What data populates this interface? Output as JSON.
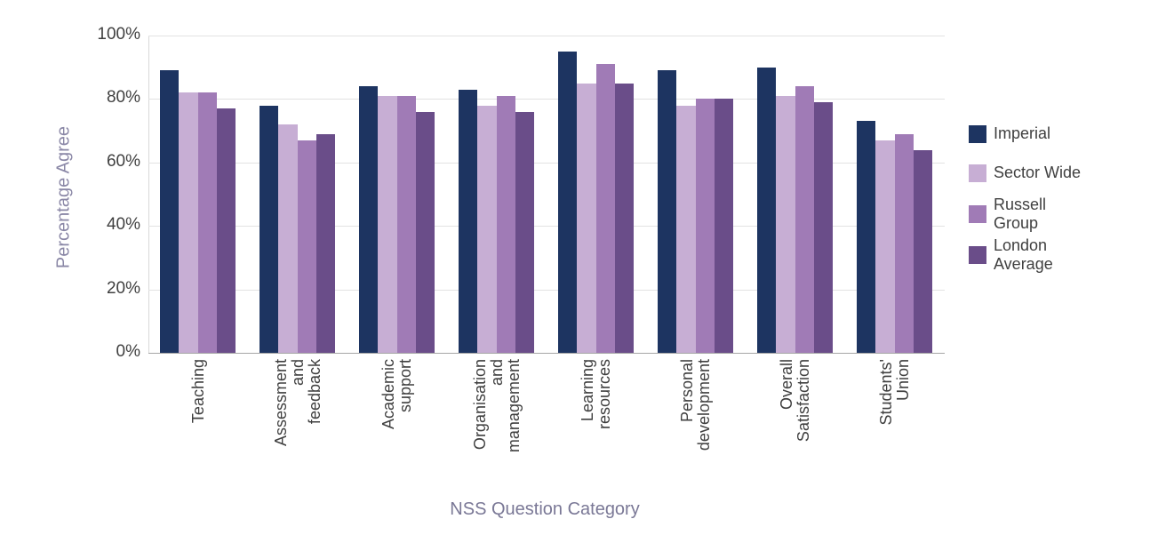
{
  "chart_data": {
    "type": "bar",
    "title": "",
    "xlabel": "NSS Question Category",
    "ylabel": "Percentage Agree",
    "ylim": [
      0,
      100
    ],
    "yticks": [
      "0%",
      "20%",
      "40%",
      "60%",
      "80%",
      "100%"
    ],
    "grid": true,
    "legend_position": "right",
    "categories": [
      "Teaching",
      "Assessment and feedback",
      "Academic support",
      "Organisation and management",
      "Learning resources",
      "Personal development",
      "Overall Satisfaction",
      "Students' Union"
    ],
    "category_lines": [
      [
        "Teaching"
      ],
      [
        "Assessment",
        "and",
        "feedback"
      ],
      [
        "Academic",
        "support"
      ],
      [
        "Organisation",
        "and",
        "management"
      ],
      [
        "Learning",
        "resources"
      ],
      [
        "Personal",
        "development"
      ],
      [
        "Overall",
        "Satisfaction"
      ],
      [
        "Students'",
        "Union"
      ]
    ],
    "series": [
      {
        "name": "Imperial",
        "legend_lines": [
          "Imperial"
        ],
        "color": "#1d3461",
        "values": [
          89,
          78,
          84,
          83,
          95,
          89,
          90,
          73
        ]
      },
      {
        "name": "Sector Wide",
        "legend_lines": [
          "Sector Wide"
        ],
        "color": "#c7aed4",
        "values": [
          82,
          72,
          81,
          78,
          85,
          78,
          81,
          67
        ]
      },
      {
        "name": "Russell Group",
        "legend_lines": [
          "Russell",
          "Group"
        ],
        "color": "#a07bb6",
        "values": [
          82,
          67,
          81,
          81,
          91,
          80,
          84,
          69
        ]
      },
      {
        "name": "London Average",
        "legend_lines": [
          "London",
          "Average"
        ],
        "color": "#6a4d89",
        "values": [
          77,
          69,
          76,
          76,
          85,
          80,
          79,
          64
        ]
      }
    ]
  }
}
